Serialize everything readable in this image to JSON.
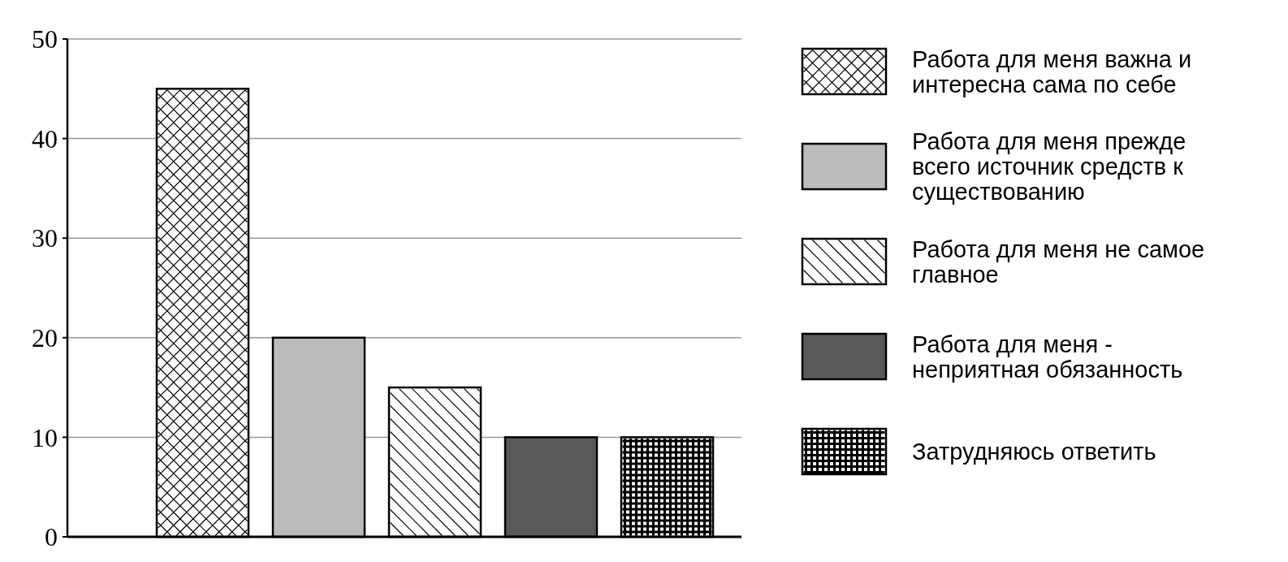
{
  "chart_data": {
    "type": "bar",
    "categories": [
      null
    ],
    "series": [
      {
        "name": "Работа для меня важна и интересна сама по себе",
        "color": "#ffffff",
        "values": [
          45
        ]
      },
      {
        "name": "Работа для меня прежде всего источник средств к существованию",
        "color": "#bbbbbb",
        "values": [
          20
        ]
      },
      {
        "name": "Работа для меня не самое главное",
        "color": "#ffffff",
        "values": [
          15
        ]
      },
      {
        "name": "Работа для меня - неприятная обязанность",
        "color": "#595959",
        "values": [
          10
        ]
      },
      {
        "name": "Затрудняюсь ответить",
        "color": "#ffffff",
        "values": [
          10
        ]
      }
    ],
    "ylim": [
      0,
      50
    ],
    "yticks": [
      0,
      10,
      20,
      30,
      40,
      50
    ],
    "grid": "y",
    "legend": "right"
  }
}
